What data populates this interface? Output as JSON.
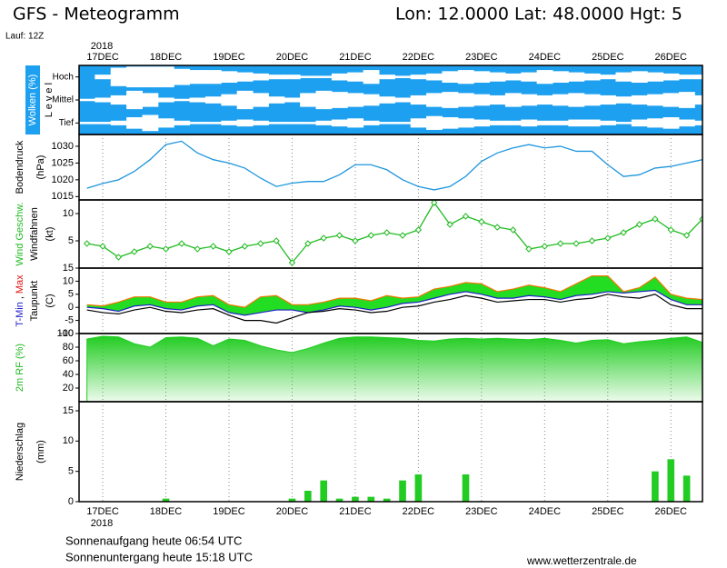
{
  "header": {
    "title": "GFS - Meteogramm",
    "location": "Lon: 12.0000 Lat: 48.0000 Hgt: 5",
    "run": "Lauf: 12Z"
  },
  "time_axis": {
    "year": "2018",
    "xlim": [
      -0.375,
      9.5
    ],
    "xticks": [
      {
        "value": 0,
        "label": "17DEC"
      },
      {
        "value": 1,
        "label": "18DEC"
      },
      {
        "value": 2,
        "label": "19DEC"
      },
      {
        "value": 3,
        "label": "20DEC"
      },
      {
        "value": 4,
        "label": "21DEC"
      },
      {
        "value": 5,
        "label": "22DEC"
      },
      {
        "value": 6,
        "label": "23DEC"
      },
      {
        "value": 7,
        "label": "24DEC"
      },
      {
        "value": 8,
        "label": "25DEC"
      },
      {
        "value": 9,
        "label": "26DEC"
      }
    ],
    "x": [
      -0.25,
      0,
      0.25,
      0.5,
      0.75,
      1,
      1.25,
      1.5,
      1.75,
      2,
      2.25,
      2.5,
      2.75,
      3,
      3.25,
      3.5,
      3.75,
      4,
      4.25,
      4.5,
      4.75,
      5,
      5.25,
      5.5,
      5.75,
      6,
      6.25,
      6.5,
      6.75,
      7,
      7.25,
      7.5,
      7.75,
      8,
      8.25,
      8.5,
      8.75,
      9,
      9.25,
      9.5
    ]
  },
  "chart_data": [
    {
      "type": "cloud_levels",
      "background": "#1ea0f0",
      "ylim": [
        0,
        100
      ],
      "ylabel_lines": [
        [
          {
            "text": "Wolken (%)",
            "color": "#ffffff",
            "background": "#1ea0f0"
          }
        ],
        [
          {
            "text": "L e v e l",
            "color": "#000000"
          }
        ]
      ],
      "series": [
        {
          "name": "Hoch",
          "color": "#ffffff",
          "values": [
            0,
            20,
            80,
            90,
            90,
            90,
            70,
            60,
            60,
            50,
            40,
            30,
            20,
            20,
            10,
            10,
            30,
            40,
            60,
            20,
            10,
            20,
            30,
            50,
            60,
            50,
            40,
            30,
            40,
            60,
            50,
            40,
            30,
            20,
            40,
            50,
            40,
            30,
            20,
            20
          ]
        },
        {
          "name": "Mittel",
          "color": "#ffffff",
          "values": [
            10,
            20,
            40,
            80,
            60,
            20,
            10,
            20,
            30,
            50,
            80,
            60,
            30,
            20,
            60,
            80,
            70,
            60,
            50,
            30,
            20,
            40,
            60,
            70,
            60,
            50,
            40,
            60,
            50,
            40,
            50,
            60,
            50,
            40,
            30,
            40,
            50,
            60,
            70,
            40
          ]
        },
        {
          "name": "Tief",
          "color": "#ffffff",
          "values": [
            10,
            10,
            20,
            50,
            70,
            40,
            20,
            10,
            10,
            20,
            30,
            20,
            10,
            10,
            10,
            20,
            30,
            40,
            20,
            10,
            10,
            40,
            60,
            50,
            40,
            30,
            20,
            20,
            30,
            20,
            20,
            30,
            30,
            20,
            10,
            30,
            40,
            50,
            30,
            20
          ]
        }
      ]
    },
    {
      "type": "line",
      "ylim": [
        1014,
        1033.5
      ],
      "yticks": [
        1015,
        1020,
        1025,
        1030
      ],
      "grid": true,
      "ylabel_lines": [
        [
          {
            "text": "Bodendruck",
            "color": "#000000"
          }
        ],
        [
          {
            "text": "(hPa)",
            "color": "#000000"
          }
        ]
      ],
      "series": [
        {
          "color": "#1e96dc",
          "values": [
            1017.5,
            1018.9,
            1020,
            1022.5,
            1026,
            1030.5,
            1031.5,
            1028,
            1026,
            1025,
            1023.5,
            1020.5,
            1018,
            1019,
            1019.5,
            1019.5,
            1021.5,
            1024.5,
            1024.5,
            1023,
            1020,
            1018,
            1017,
            1018,
            1021,
            1025.5,
            1028,
            1029.5,
            1030.5,
            1029.5,
            1030,
            1028.5,
            1028.5,
            1024.5,
            1021,
            1021.5,
            1023.5,
            1024,
            1025,
            1026
          ]
        }
      ]
    },
    {
      "type": "line",
      "markers": true,
      "ylim": [
        0,
        12.5
      ],
      "yticks": [
        5,
        10
      ],
      "grid": true,
      "ylabel_lines": [
        [
          {
            "text": "Wind Geschw.",
            "color": "#22bb22"
          }
        ],
        [
          {
            "text": "Windfahnen",
            "color": "#000000"
          }
        ],
        [
          {
            "text": "(kt)",
            "color": "#000000"
          }
        ]
      ],
      "series": [
        {
          "color": "#22bb22",
          "values": [
            4.5,
            4,
            2,
            3,
            4,
            3.5,
            4.5,
            3.5,
            4,
            3,
            4,
            4.5,
            5,
            1,
            4.5,
            5.5,
            6,
            5,
            6,
            6.5,
            6,
            7,
            12,
            8,
            9.5,
            8.5,
            7.5,
            7,
            3.5,
            4,
            4.5,
            4.5,
            5,
            5.5,
            6.5,
            8,
            9,
            7,
            6,
            9
          ]
        }
      ]
    },
    {
      "type": "range",
      "ylim": [
        -10,
        15
      ],
      "yticks": [
        -10,
        -5,
        0,
        5,
        10,
        15
      ],
      "grid": true,
      "fill_color": "#22dd22",
      "ylabel_lines": [
        [
          {
            "text": "T-Min",
            "color": "#2020c8"
          },
          {
            "text": ",",
            "color": "#000000"
          },
          {
            "text": "Max",
            "color": "#e01010"
          }
        ],
        [
          {
            "text": "Taupunkt",
            "color": "#000000"
          }
        ],
        [
          {
            "text": "(C)",
            "color": "#000000"
          }
        ]
      ],
      "series": [
        {
          "color": "#2020c8",
          "values": [
            0,
            -0.5,
            -1.5,
            0.5,
            1,
            -0.5,
            -1,
            0.5,
            1,
            -2,
            -3,
            -2,
            -1,
            -1,
            -2,
            -1,
            0.5,
            0,
            -1,
            0,
            1.5,
            2,
            3.5,
            5,
            6,
            5,
            3.5,
            3.5,
            4.5,
            4,
            3,
            4.5,
            5,
            6,
            5.5,
            6,
            6.5,
            3,
            1,
            1
          ]
        },
        {
          "color": "#f07800",
          "values": [
            1,
            0.5,
            2,
            4,
            4,
            2,
            2,
            4,
            4.5,
            1,
            0,
            4,
            4.5,
            1,
            1,
            2,
            3.5,
            3.5,
            2.5,
            4.5,
            3.5,
            4,
            7,
            8,
            9.5,
            9,
            6,
            7,
            8.5,
            7.5,
            6,
            9,
            12,
            12,
            6,
            7.5,
            11.5,
            5,
            3.5,
            3
          ]
        },
        {
          "color": "#000000",
          "values": [
            -1,
            -2,
            -2.5,
            -1,
            0,
            -1.5,
            -2,
            -1,
            -0.5,
            -3,
            -5,
            -5,
            -6,
            -4,
            -2,
            -1.5,
            -0.5,
            -1,
            -2,
            -1.5,
            0,
            0.5,
            2,
            3,
            4.5,
            3.5,
            2,
            2.5,
            3,
            3,
            2,
            3,
            3.5,
            5,
            4,
            3.5,
            5,
            1,
            -0.5,
            -0.5
          ]
        }
      ]
    },
    {
      "type": "area",
      "ylim": [
        0,
        100
      ],
      "yticks": [
        20,
        40,
        60,
        80,
        100
      ],
      "grid": true,
      "ylabel_lines": [
        [
          {
            "text": "2m RF (%)",
            "color": "#22bb22"
          }
        ]
      ],
      "series": [
        {
          "color": "#22cc22",
          "values": [
            92,
            96,
            95,
            85,
            80,
            94,
            95,
            93,
            82,
            92,
            90,
            82,
            76,
            72,
            78,
            86,
            93,
            95,
            95,
            94,
            93,
            90,
            89,
            92,
            93,
            92,
            93,
            92,
            91,
            93,
            90,
            86,
            90,
            91,
            85,
            88,
            90,
            93,
            95,
            87
          ]
        }
      ]
    },
    {
      "type": "bar",
      "ylim": [
        0,
        16.5
      ],
      "yticks": [
        0,
        5,
        10,
        15
      ],
      "grid": true,
      "ylabel_lines": [
        [
          {
            "text": "Niederschlag",
            "color": "#000000"
          }
        ],
        [
          {
            "text": "(mm)",
            "color": "#000000"
          }
        ]
      ],
      "series": [
        {
          "color": "#22cc22",
          "values": [
            0,
            0,
            0,
            0,
            0,
            0.5,
            0,
            0,
            0,
            0,
            0,
            0,
            0,
            0.5,
            1.8,
            3.5,
            0.5,
            0.8,
            0.8,
            0.5,
            3.5,
            4.5,
            0,
            0,
            4.5,
            0.1,
            0,
            0,
            0,
            0,
            0,
            0,
            0,
            0,
            0,
            0,
            5,
            7,
            4.3,
            0
          ]
        }
      ]
    }
  ],
  "footer": {
    "sunrise": "Sonnenaufgang heute 06:54 UTC",
    "sunset": "Sonnenuntergang heute 15:18 UTC",
    "source": "www.wetterzentrale.de"
  }
}
